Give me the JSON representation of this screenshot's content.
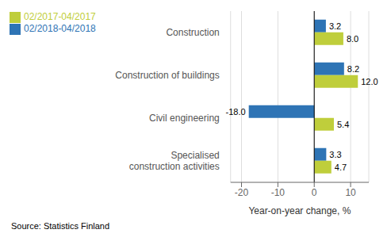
{
  "chart_data": {
    "type": "bar",
    "orientation": "horizontal",
    "categories": [
      "Specialised\nconstruction activities",
      "Civil engineering",
      "Construction of buildings",
      "Construction"
    ],
    "series": [
      {
        "name": "02/2018-04/2018",
        "color": "#2E74B5",
        "values": [
          3.3,
          -18.0,
          8.2,
          3.2
        ],
        "value_labels": [
          "3.3",
          "-18.0",
          "8.2",
          "3.2"
        ]
      },
      {
        "name": "02/2017-04/2017",
        "color": "#BFCE3B",
        "values": [
          4.7,
          5.4,
          12.0,
          8.0
        ],
        "value_labels": [
          "4.7",
          "5.4",
          "12.0",
          "8.0"
        ]
      }
    ],
    "xlim": [
      -23,
      15
    ],
    "xticks": [
      -20,
      -10,
      0,
      10
    ],
    "xlabel": "Year-on-year change, %",
    "grid": true,
    "legend": "upper left",
    "data_labels": true,
    "annotations": [
      "Source: Statistics Finland"
    ]
  }
}
